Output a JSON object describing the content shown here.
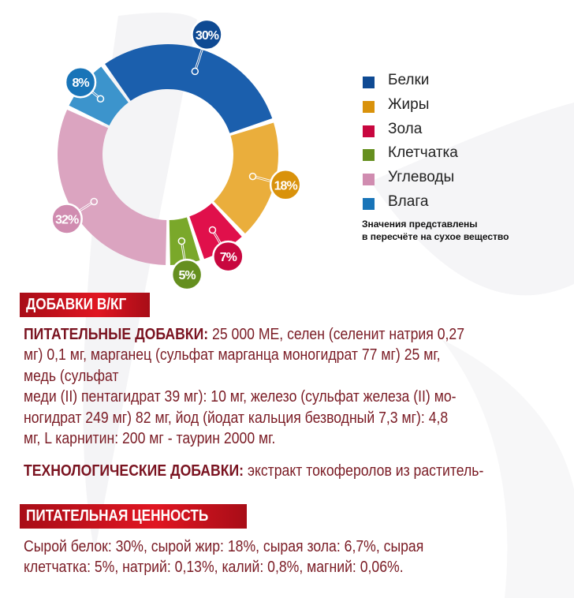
{
  "chart_data": {
    "type": "donut",
    "series": [
      {
        "name": "Белки",
        "value": 30,
        "label": "30%",
        "color": "#1b5fad",
        "label_color": "#0f4a93"
      },
      {
        "name": "Жиры",
        "value": 18,
        "label": "18%",
        "color": "#eaae3c",
        "label_color": "#d9920b"
      },
      {
        "name": "Зола",
        "value": 7,
        "label": "7%",
        "color": "#e0104b",
        "label_color": "#c8073f"
      },
      {
        "name": "Клетчатка",
        "value": 5,
        "label": "5%",
        "color": "#7aa82a",
        "label_color": "#658f1f"
      },
      {
        "name": "Углеводы",
        "value": 32,
        "label": "32%",
        "color": "#dba4c0",
        "label_color": "#d08cb0"
      },
      {
        "name": "Влага",
        "value": 8,
        "label": "8%",
        "color": "#3c94cc",
        "label_color": "#1874b8"
      }
    ],
    "legend_placement": "right",
    "note": [
      "Значения представлены",
      "в пересчёте на сухое вещество"
    ]
  },
  "additives": {
    "heading": "ДОБАВКИ В/КГ",
    "nutritional_label": "ПИТАТЕЛЬНЫЕ ДОБАВКИ:",
    "nutritional_lines": [
      " 25 000 МЕ, селен (селенит натрия 0,27",
      "мг) 0,1 мг, марганец (сульфат марганца моногидрат 77 мг) 25 мг,",
      "медь (сульфат",
      "меди (II) пентагидрат 39 мг): 10 мг, железо (сульфат железа (II) мо-",
      "ногидрат 249 мг) 82 мг, йод (йодат кальция безводный 7,3 мг): 4,8",
      "мг, L карнитин: 200 мг - таурин 2000 мг."
    ],
    "technological_label": "ТЕХНОЛОГИЧЕСКИЕ ДОБАВКИ:",
    "technological_text": " экстракт токоферолов из раститель-"
  },
  "nutrition": {
    "heading": "ПИТАТЕЛЬНАЯ ЦЕННОСТЬ",
    "lines": [
      "Сырой белок: 30%, сырой жир: 18%, сырая зола: 6,7%, сырая",
      "клетчатка: 5%, натрий: 0,13%, калий: 0,8%, магний: 0,06%."
    ]
  }
}
